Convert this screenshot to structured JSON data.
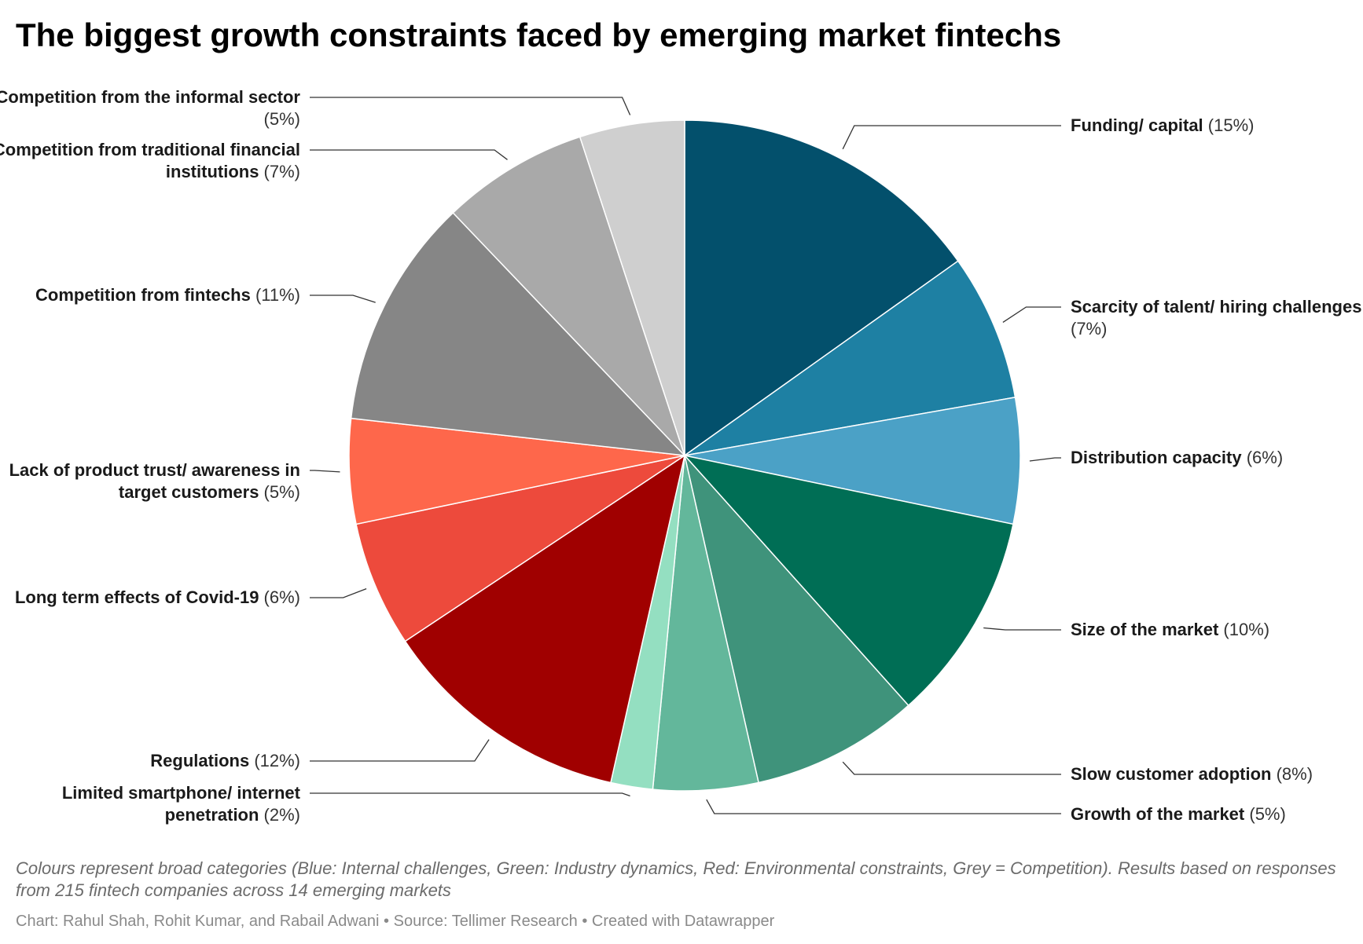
{
  "chart_data": {
    "type": "pie",
    "title": "The biggest growth constraints faced by emerging market fintechs",
    "slices": [
      {
        "label": "Funding/ capital",
        "pct_label": "(15%)",
        "value": 15,
        "color": "#03506c",
        "side": "right"
      },
      {
        "label": "Scarcity of talent/ hiring challenges",
        "pct_label": "(7%)",
        "value": 7,
        "color": "#1e80a3",
        "side": "right"
      },
      {
        "label": "Distribution capacity",
        "pct_label": "(6%)",
        "value": 6,
        "color": "#4ba1c6",
        "side": "right"
      },
      {
        "label": "Size of the market",
        "pct_label": "(10%)",
        "value": 10,
        "color": "#006e55",
        "side": "right"
      },
      {
        "label": "Slow customer adoption",
        "pct_label": "(8%)",
        "value": 8,
        "color": "#3f937b",
        "side": "right"
      },
      {
        "label": "Growth of the market",
        "pct_label": "(5%)",
        "value": 5,
        "color": "#63b79b",
        "side": "right"
      },
      {
        "label": "Limited smartphone/ internet penetration",
        "pct_label": "(2%)",
        "value": 2,
        "color": "#94dfc1",
        "side": "left"
      },
      {
        "label": "Regulations",
        "pct_label": "(12%)",
        "value": 12,
        "color": "#a00000",
        "side": "left"
      },
      {
        "label": "Long term effects of Covid-19",
        "pct_label": "(6%)",
        "value": 6,
        "color": "#ed4a3c",
        "side": "left"
      },
      {
        "label": "Lack of product trust/ awareness in target customers",
        "pct_label": "(5%)",
        "value": 5,
        "color": "#fe674b",
        "side": "left"
      },
      {
        "label": "Competition from fintechs",
        "pct_label": "(11%)",
        "value": 11,
        "color": "#868686",
        "side": "left"
      },
      {
        "label": "Competition from traditional financial institutions",
        "pct_label": "(7%)",
        "value": 7,
        "color": "#a9a9a9",
        "side": "left"
      },
      {
        "label": "Competition from the informal sector",
        "pct_label": "(5%)",
        "value": 5,
        "color": "#cfcfcf",
        "side": "left"
      }
    ],
    "notes": "Colours represent broad categories (Blue: Internal challenges, Green: Industry dynamics, Red: Environmental constraints, Grey = Competition). Results based on responses from 215 fintech companies across 14 emerging markets",
    "credit": "Chart: Rahul Shah, Rohit Kumar, and Rabail Adwani • Source: Tellimer Research • Created with Datawrapper"
  }
}
